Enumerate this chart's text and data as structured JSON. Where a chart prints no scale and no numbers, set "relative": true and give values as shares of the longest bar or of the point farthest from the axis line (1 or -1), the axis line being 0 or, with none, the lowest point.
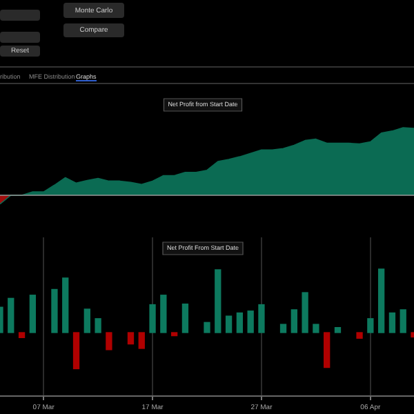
{
  "chart_data": [
    {
      "type": "other",
      "annotations": [
        "Monte Carlo",
        "Compare",
        "Reset",
        "ribution",
        "MFE Distribution",
        "Graphs"
      ]
    },
    {
      "type": "area",
      "title": "Net Profit from Start Date",
      "relative": true,
      "tick_labels": false,
      "categories": [
        null,
        null,
        null,
        null,
        null,
        null,
        null,
        null,
        null,
        null,
        null,
        null,
        null,
        null,
        null,
        null,
        null,
        null,
        null,
        null,
        null,
        null,
        null,
        null,
        null,
        null,
        null,
        null,
        null,
        null,
        null,
        null,
        null,
        null,
        null,
        null,
        null,
        null,
        null
      ],
      "series": [
        {
          "color": "#0b6b53",
          "values": [
            -0.13,
            0,
            0,
            0.05,
            0.05,
            0.15,
            0.26,
            0.18,
            0.22,
            0.25,
            0.21,
            0.21,
            0.19,
            0.16,
            0.21,
            0.29,
            0.29,
            0.34,
            0.34,
            0.37,
            0.5,
            0.53,
            0.57,
            0.62,
            0.67,
            0.67,
            0.69,
            0.74,
            0.81,
            0.83,
            0.77,
            0.77,
            0.77,
            0.76,
            0.79,
            0.92,
            0.95,
            1,
            0.99
          ],
          "colors": [
            "#a00d0d",
            "#0b6b53",
            "#0b6b53",
            "#0b6b53",
            "#0b6b53",
            "#0b6b53",
            "#0b6b53",
            "#0b6b53",
            "#0b6b53",
            "#0b6b53",
            "#0b6b53",
            "#0b6b53",
            "#0b6b53",
            "#0b6b53",
            "#0b6b53",
            "#0b6b53",
            "#0b6b53",
            "#0b6b53",
            "#0b6b53",
            "#0b6b53",
            "#0b6b53",
            "#0b6b53",
            "#0b6b53",
            "#0b6b53",
            "#0b6b53",
            "#0b6b53",
            "#0b6b53",
            "#0b6b53",
            "#0b6b53",
            "#0b6b53",
            "#0b6b53",
            "#0b6b53",
            "#0b6b53",
            "#0b6b53",
            "#0b6b53",
            "#0b6b53",
            "#0b6b53",
            "#0b6b53",
            "#0b6b53"
          ]
        }
      ]
    },
    {
      "type": "bar",
      "title": "Net Profit From Start Date",
      "relative": true,
      "grid": "x",
      "tick_labels": "x",
      "xlim": [
        "--03-03",
        "--04-10"
      ],
      "xticks": [
        {
          "value": "--03-07",
          "label": "07 Mar"
        },
        {
          "value": "--03-17",
          "label": "17 Mar"
        },
        {
          "value": "--03-27",
          "label": "27 Mar"
        },
        {
          "value": "--04-06",
          "label": "06 Apr"
        }
      ],
      "series": [
        {
          "x": [
            "--03-03",
            "--03-04",
            "--03-05",
            "--03-06",
            "--03-08",
            "--03-09",
            "--03-10",
            "--03-11",
            "--03-12",
            "--03-13",
            "--03-15",
            "--03-16",
            "--03-17",
            "--03-18",
            "--03-19",
            "--03-20",
            "--03-22",
            "--03-23",
            "--03-24",
            "--03-25",
            "--03-26",
            "--03-27",
            "--03-29",
            "--03-30",
            "--03-31",
            "--04-01",
            "--04-02",
            "--04-03",
            "--04-05",
            "--04-06",
            "--04-07",
            "--04-08",
            "--04-09",
            "--04-10"
          ],
          "values": [
            0.4,
            0.54,
            -0.08,
            0.59,
            0.68,
            0.86,
            -0.57,
            0.37,
            0.22,
            -0.27,
            -0.18,
            -0.25,
            0.44,
            0.59,
            -0.05,
            0.45,
            0.16,
            0.99,
            0.26,
            0.31,
            0.34,
            0.44,
            0.13,
            0.36,
            0.63,
            0.13,
            -0.55,
            0.08,
            -0.09,
            0.22,
            1,
            0.31,
            0.36,
            -0.07
          ],
          "colors": [
            "#0d7a5f",
            "#0d7a5f",
            "#b00000",
            "#0d7a5f",
            "#0d7a5f",
            "#0d7a5f",
            "#b00000",
            "#0d7a5f",
            "#0d7a5f",
            "#b00000",
            "#b00000",
            "#b00000",
            "#0d7a5f",
            "#0d7a5f",
            "#b00000",
            "#0d7a5f",
            "#0d7a5f",
            "#0d7a5f",
            "#0d7a5f",
            "#0d7a5f",
            "#0d7a5f",
            "#0d7a5f",
            "#0d7a5f",
            "#0d7a5f",
            "#0d7a5f",
            "#0d7a5f",
            "#b00000",
            "#0d7a5f",
            "#b00000",
            "#0d7a5f",
            "#0d7a5f",
            "#0d7a5f",
            "#0d7a5f",
            "#b00000"
          ]
        }
      ]
    }
  ]
}
